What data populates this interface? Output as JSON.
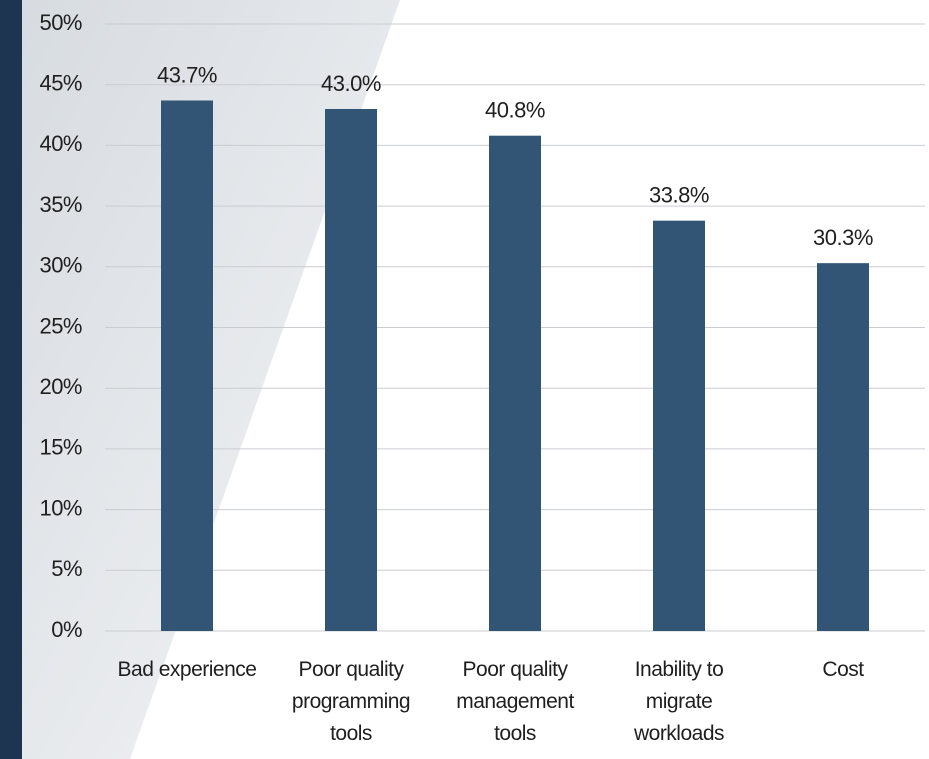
{
  "chart_data": {
    "type": "bar",
    "categories": [
      "Bad experience",
      "Poor quality programming tools",
      "Poor quality management tools",
      "Inability to migrate workloads",
      "Cost"
    ],
    "values": [
      43.7,
      43.0,
      40.8,
      33.8,
      30.3
    ],
    "value_labels": [
      "43.7%",
      "43.0%",
      "40.8%",
      "33.8%",
      "30.3%"
    ],
    "color": "#325576",
    "ylim": [
      0,
      50
    ],
    "yticks": [
      {
        "value": 0,
        "label": "0%"
      },
      {
        "value": 5,
        "label": "5%"
      },
      {
        "value": 10,
        "label": "10%"
      },
      {
        "value": 15,
        "label": "15%"
      },
      {
        "value": 20,
        "label": "20%"
      },
      {
        "value": 25,
        "label": "25%"
      },
      {
        "value": 30,
        "label": "30%"
      },
      {
        "value": 35,
        "label": "35%"
      },
      {
        "value": 40,
        "label": "40%"
      },
      {
        "value": 45,
        "label": "45%"
      },
      {
        "value": 50,
        "label": "50%"
      }
    ],
    "grid": true
  }
}
